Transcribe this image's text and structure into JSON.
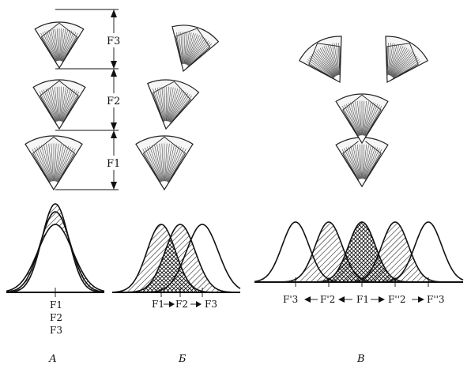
{
  "labels": {
    "f3": "F3",
    "f2": "F2",
    "f1": "F1",
    "b_axis": [
      "F1",
      "F2",
      "F3"
    ],
    "v_axis": [
      "F'3",
      "F'2",
      "F1",
      "F''2",
      "F''3"
    ],
    "a_stack": [
      "F1",
      "F2",
      "F3"
    ]
  },
  "panels": [
    "А",
    "Б",
    "В"
  ]
}
